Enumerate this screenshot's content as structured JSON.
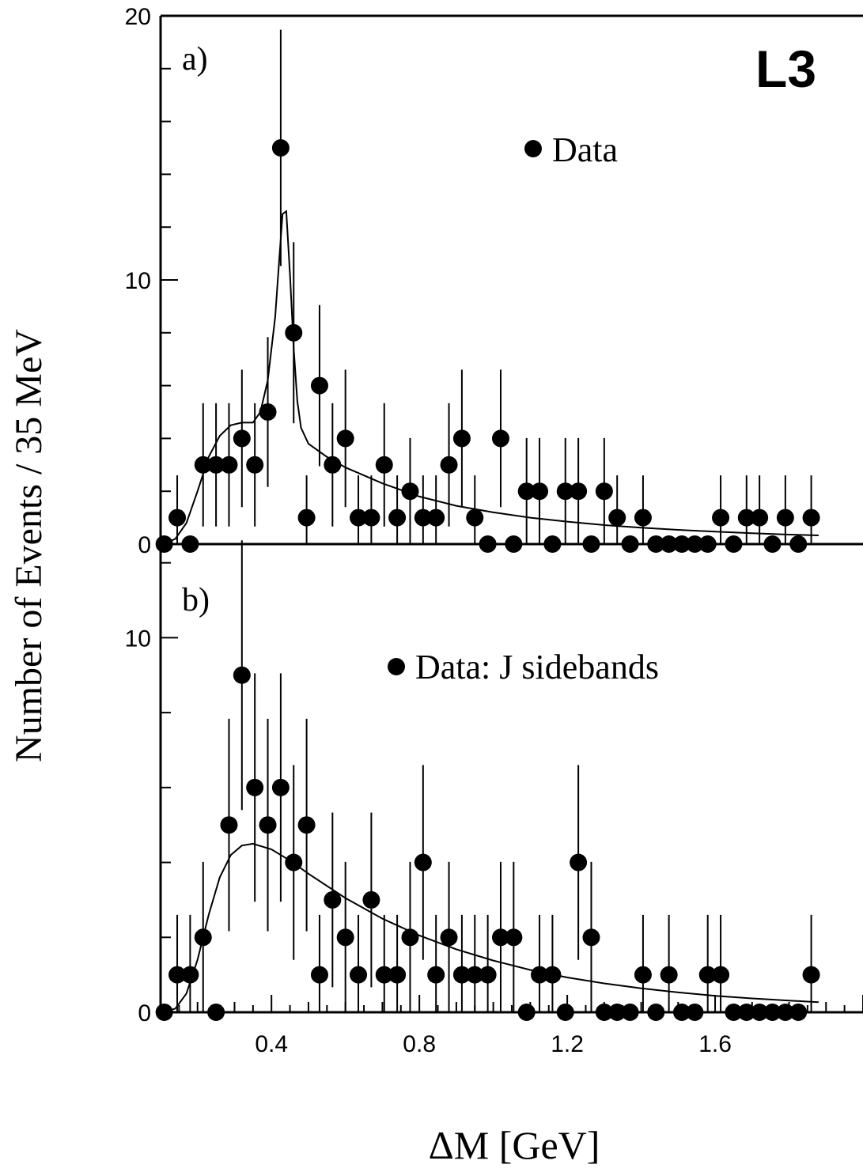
{
  "chart_data": [
    {
      "panel_label": "a)",
      "type": "scatter",
      "ylim": [
        0,
        20
      ],
      "y_tick_labels": [
        "0",
        "10",
        "20"
      ],
      "legend": "Data",
      "logo": "L3",
      "series": [
        {
          "x": [
            0.11,
            0.145,
            0.18,
            0.215,
            0.25,
            0.285,
            0.32,
            0.355,
            0.39,
            0.425,
            0.46,
            0.495,
            0.53,
            0.565,
            0.6,
            0.635,
            0.67,
            0.705,
            0.74,
            0.775,
            0.81,
            0.845,
            0.88,
            0.915,
            0.95,
            0.985,
            1.02,
            1.055,
            1.09,
            1.125,
            1.16,
            1.195,
            1.23,
            1.265,
            1.3,
            1.335,
            1.37,
            1.405,
            1.44,
            1.475,
            1.51,
            1.545,
            1.58,
            1.615,
            1.65,
            1.685,
            1.72,
            1.755,
            1.79,
            1.825,
            1.86
          ],
          "values": [
            0,
            1,
            0,
            3,
            3,
            3,
            4,
            3,
            5,
            15,
            8,
            1,
            6,
            3,
            4,
            1,
            1,
            3,
            1,
            2,
            1,
            1,
            3,
            4,
            1,
            0,
            4,
            0,
            2,
            2,
            0,
            2,
            2,
            0,
            2,
            1,
            0,
            1,
            0,
            0,
            0,
            0,
            0,
            1,
            0,
            1,
            1,
            0,
            1,
            0,
            1
          ]
        }
      ],
      "fit_curve": {
        "x": [
          0.11,
          0.14,
          0.17,
          0.2,
          0.23,
          0.26,
          0.29,
          0.32,
          0.35,
          0.37,
          0.39,
          0.41,
          0.42,
          0.43,
          0.44,
          0.45,
          0.46,
          0.47,
          0.48,
          0.5,
          0.55,
          0.6,
          0.7,
          0.8,
          0.9,
          1.0,
          1.1,
          1.2,
          1.3,
          1.4,
          1.5,
          1.6,
          1.7,
          1.8,
          1.88
        ],
        "values": [
          0,
          0.2,
          0.8,
          2.0,
          3.3,
          4.1,
          4.5,
          4.6,
          4.6,
          5.0,
          6.2,
          8.6,
          10.6,
          12.5,
          12.6,
          10.2,
          7.4,
          5.4,
          4.4,
          3.8,
          3.3,
          2.9,
          2.3,
          1.8,
          1.45,
          1.2,
          1.0,
          0.85,
          0.72,
          0.62,
          0.54,
          0.47,
          0.41,
          0.36,
          0.33
        ]
      }
    },
    {
      "panel_label": "b)",
      "type": "scatter",
      "ylim": [
        0,
        12
      ],
      "y_tick_labels": [
        "0",
        "10"
      ],
      "legend": "Data: J sidebands",
      "series": [
        {
          "x": [
            0.11,
            0.145,
            0.18,
            0.215,
            0.25,
            0.285,
            0.32,
            0.355,
            0.39,
            0.425,
            0.46,
            0.495,
            0.53,
            0.565,
            0.6,
            0.635,
            0.67,
            0.705,
            0.74,
            0.775,
            0.81,
            0.845,
            0.88,
            0.915,
            0.95,
            0.985,
            1.02,
            1.055,
            1.09,
            1.125,
            1.16,
            1.195,
            1.23,
            1.265,
            1.3,
            1.335,
            1.37,
            1.405,
            1.44,
            1.475,
            1.51,
            1.545,
            1.58,
            1.615,
            1.65,
            1.685,
            1.72,
            1.755,
            1.79,
            1.825,
            1.86
          ],
          "values": [
            0,
            1,
            1,
            2,
            0,
            5,
            9,
            6,
            5,
            6,
            4,
            5,
            1,
            3,
            2,
            1,
            3,
            1,
            1,
            2,
            4,
            1,
            2,
            1,
            1,
            1,
            2,
            2,
            0,
            1,
            1,
            0,
            4,
            2,
            0,
            0,
            0,
            1,
            0,
            1,
            0,
            0,
            1,
            1,
            0,
            0,
            0,
            0,
            0,
            0,
            1
          ]
        }
      ],
      "fit_curve": {
        "x": [
          0.11,
          0.14,
          0.17,
          0.2,
          0.23,
          0.26,
          0.29,
          0.32,
          0.35,
          0.4,
          0.45,
          0.5,
          0.6,
          0.7,
          0.8,
          0.9,
          1.0,
          1.1,
          1.2,
          1.3,
          1.4,
          1.5,
          1.6,
          1.7,
          1.8,
          1.88
        ],
        "values": [
          0,
          0.1,
          0.5,
          1.4,
          2.6,
          3.6,
          4.2,
          4.45,
          4.5,
          4.35,
          4.05,
          3.7,
          3.05,
          2.5,
          2.05,
          1.68,
          1.38,
          1.13,
          0.93,
          0.77,
          0.64,
          0.53,
          0.44,
          0.37,
          0.31,
          0.27
        ]
      }
    }
  ],
  "x_tick_labels": [
    "0.4",
    "0.8",
    "1.2",
    "1.6"
  ],
  "xlabel": "ΔM [GeV]",
  "ylabel": "Number of Events / 35 MeV"
}
